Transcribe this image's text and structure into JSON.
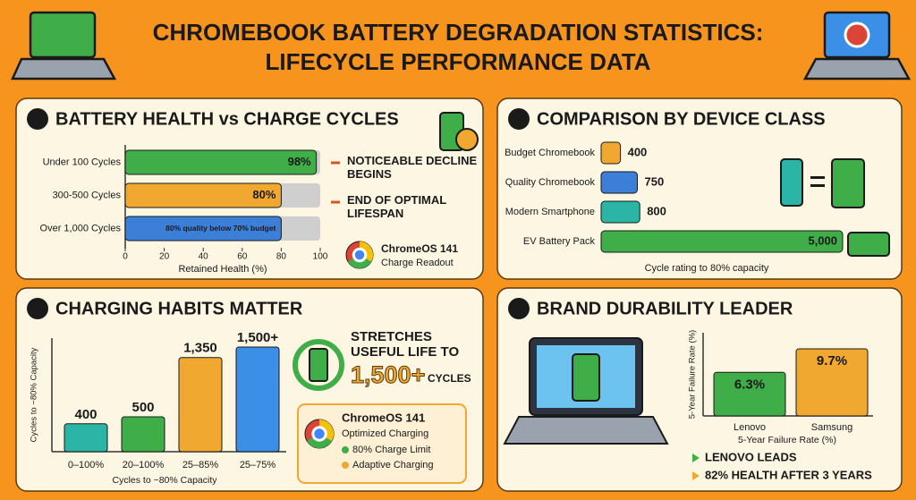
{
  "header": {
    "title": "CHROMEBOOK BATTERY DEGRADATION STATISTICS: LIFECYCLE PERFORMANCE DATA"
  },
  "chart_data": [
    {
      "type": "hbar",
      "number": 1,
      "title": "BATTERY HEALTH vs CHARGE CYCLES",
      "categories": [
        "Under 100 Cycles",
        "300-500 Cycles",
        "Over 1,000 Cycles"
      ],
      "values": [
        98,
        80,
        80
      ],
      "value_labels": [
        "98%",
        "80%",
        "80% quality below 70% budget"
      ],
      "colors": [
        "#3fae49",
        "#f0a830",
        "#3b7fd9"
      ],
      "xlim": [
        0,
        100
      ],
      "xticks": [
        0,
        20,
        40,
        60,
        80,
        100
      ],
      "xlabel": "Retained Health (%)",
      "annotations": [
        "NOTICEABLE DECLINE BEGINS",
        "END OF OPTIMAL LIFESPAN"
      ],
      "readout": {
        "title": "ChromeOS 141",
        "subtitle": "Charge Readout"
      }
    },
    {
      "type": "hbar",
      "number": 2,
      "title": "COMPARISON BY DEVICE CLASS",
      "categories": [
        "Budget Chromebook",
        "Quality Chromebook",
        "Modern Smartphone",
        "EV Battery Pack"
      ],
      "values": [
        400,
        750,
        800,
        5000
      ],
      "value_labels": [
        "400",
        "750",
        "800",
        "5,000"
      ],
      "colors": [
        "#f0a830",
        "#3b7fd9",
        "#2bb5a6",
        "#3fae49"
      ],
      "xlabel": "Cycle rating to 80% capacity"
    },
    {
      "type": "bar",
      "number": 3,
      "title": "CHARGING HABITS MATTER",
      "categories": [
        "0–100%",
        "20–100%",
        "25–85%",
        "25–75%"
      ],
      "values": [
        400,
        500,
        1350,
        1500
      ],
      "value_labels": [
        "400",
        "500",
        "1,350",
        "1,500+"
      ],
      "colors": [
        "#2bb5a6",
        "#3fae49",
        "#f0a830",
        "#3b8fe6"
      ],
      "ylabel": "Cycles to ~80% Capacity",
      "xlabel": "Cycles to ~80% Capacity",
      "callout": {
        "text": "STRETCHES USEFUL LIFE TO",
        "value": "1,500+",
        "unit": "CYCLES"
      },
      "box": {
        "title": "ChromeOS 141",
        "subtitle": "Optimized Charging",
        "items": [
          "80% Charge Limit",
          "Adaptive Charging"
        ]
      }
    },
    {
      "type": "bar",
      "number": 4,
      "title": "BRAND DURABILITY LEADER",
      "categories": [
        "Lenovo",
        "Samsung"
      ],
      "values": [
        6.3,
        9.7
      ],
      "value_labels": [
        "6.3%",
        "9.7%"
      ],
      "colors": [
        "#3fae49",
        "#f0a830"
      ],
      "ylabel": "5-Year Failure Rate (%)",
      "xlabel": "5-Year Failure Rate (%)",
      "notes": [
        "LENOVO LEADS",
        "82% HEALTH AFTER 3 YEARS"
      ]
    }
  ]
}
